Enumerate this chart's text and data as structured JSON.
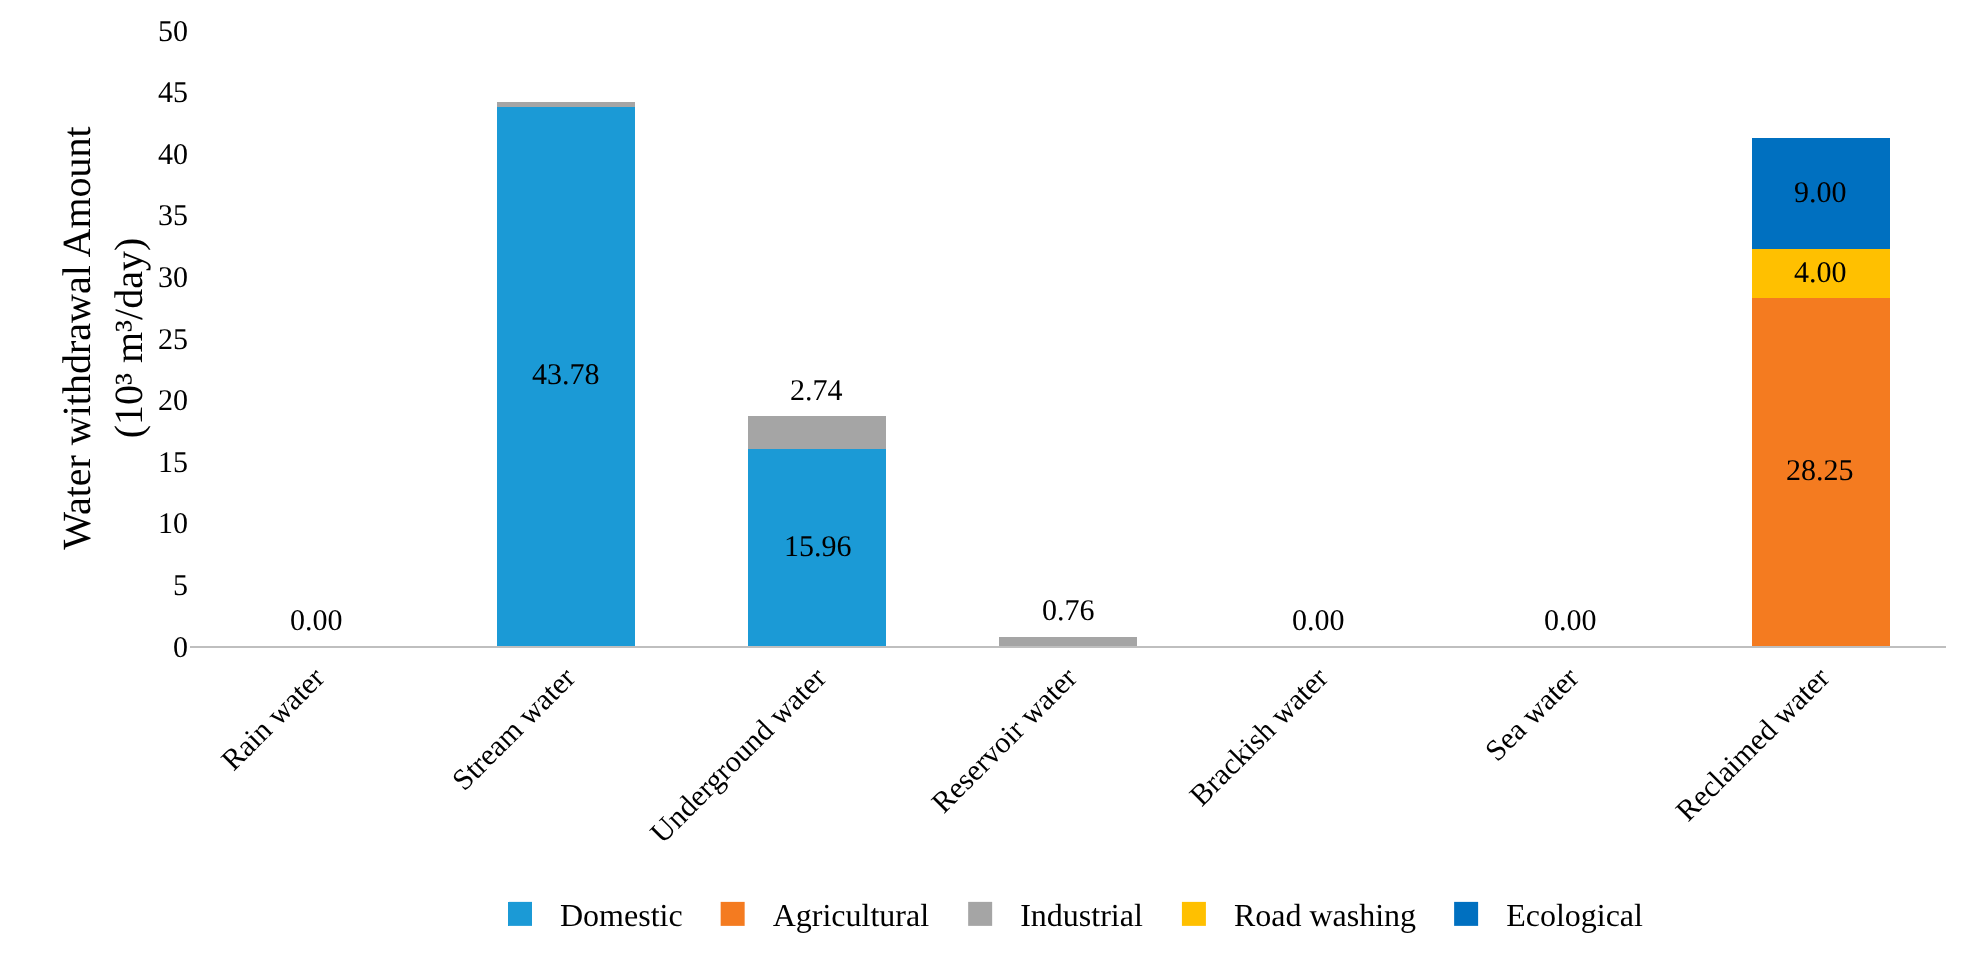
{
  "chart_data": {
    "type": "bar",
    "stacked": true,
    "ylabel": "Water withdrawal Amount\n(10³ m³/day)",
    "categories": [
      "Rain water",
      "Stream water",
      "Underground water",
      "Reservoir water",
      "Brackish water",
      "Sea water",
      "Reclaimed water"
    ],
    "series": [
      {
        "name": "Domestic",
        "color": "#1b9ad6",
        "values": [
          0,
          43.78,
          15.96,
          0,
          0,
          0,
          0
        ],
        "value_labels": [
          "0.00",
          "43.78",
          "15.96",
          null,
          "0.00",
          "0.00",
          null
        ]
      },
      {
        "name": "Agricultural",
        "color": "#f47b20",
        "values": [
          0,
          0,
          0,
          0,
          0,
          0,
          28.25
        ],
        "value_labels": [
          null,
          null,
          null,
          null,
          null,
          null,
          "28.25"
        ]
      },
      {
        "name": "Industrial",
        "color": "#a5a5a5",
        "values": [
          0,
          0.4,
          2.74,
          0.76,
          0,
          0,
          0
        ],
        "value_labels": [
          null,
          null,
          "2.74",
          "0.76",
          null,
          null,
          null
        ]
      },
      {
        "name": "Road washing",
        "color": "#ffc000",
        "values": [
          0,
          0,
          0,
          0,
          0,
          0,
          4.0
        ],
        "value_labels": [
          null,
          null,
          null,
          null,
          null,
          null,
          "4.00"
        ]
      },
      {
        "name": "Ecological",
        "color": "#0070c0",
        "values": [
          0,
          0,
          0,
          0,
          0,
          0,
          9.0
        ],
        "value_labels": [
          null,
          null,
          null,
          null,
          null,
          null,
          "9.00"
        ]
      }
    ],
    "ylim": [
      0,
      50
    ],
    "yticks": [
      0,
      5,
      10,
      15,
      20,
      25,
      30,
      35,
      40,
      45,
      50
    ],
    "grid": false,
    "legend": "bottom"
  }
}
